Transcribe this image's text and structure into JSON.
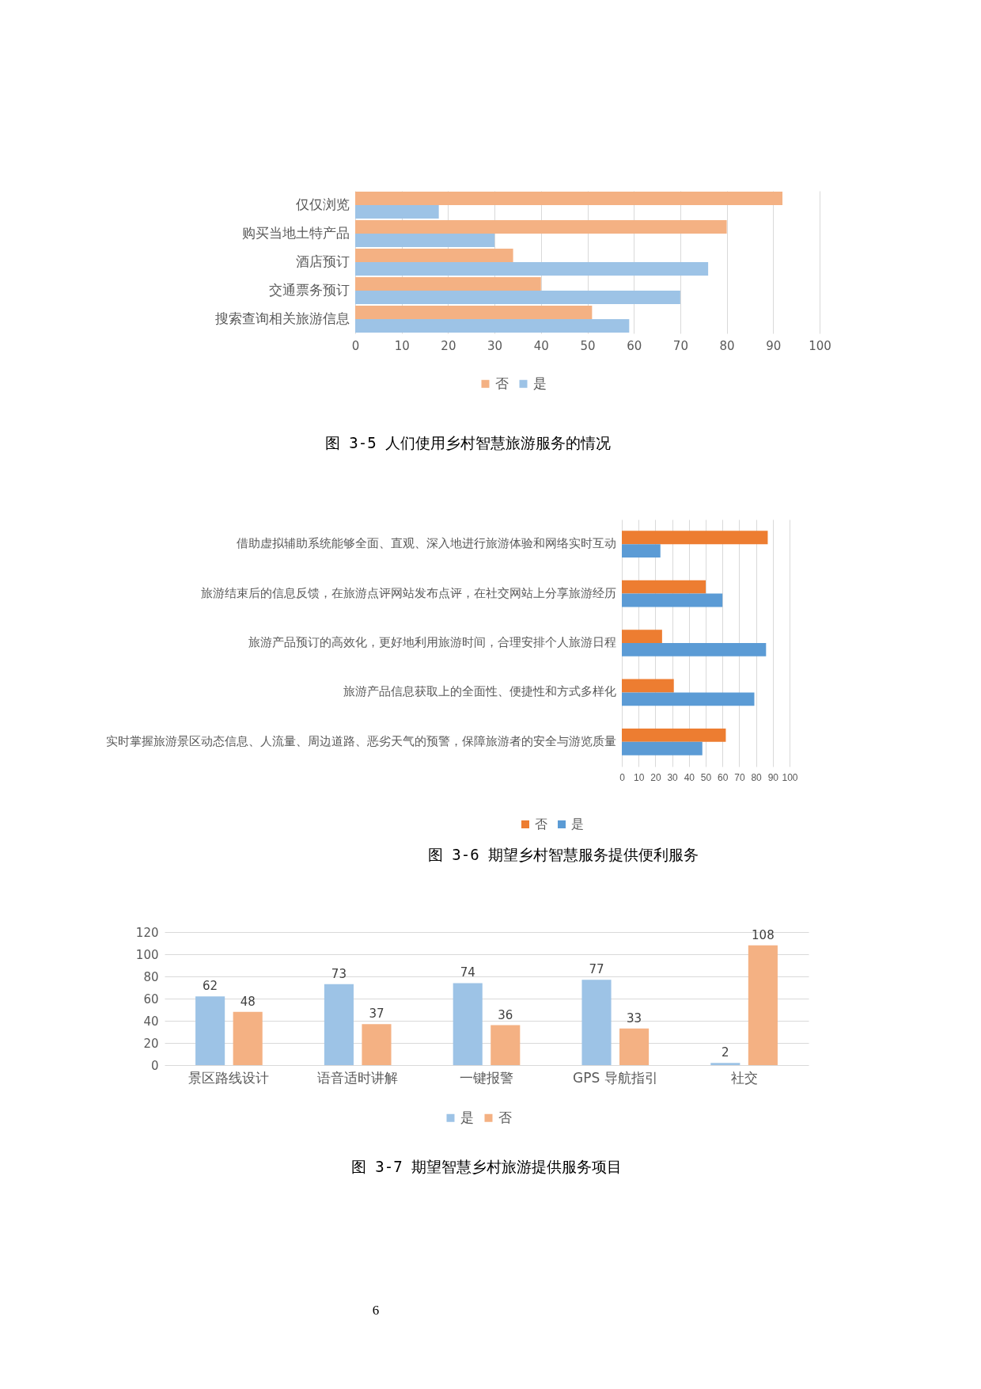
{
  "chart_data": [
    {
      "type": "bar",
      "orientation": "horizontal",
      "title": "图 3-5 人们使用乡村智慧旅游服务的情况",
      "categories": [
        "仅仅浏览",
        "购买当地土特产品",
        "酒店预订",
        "交通票务预订",
        "搜索查询相关旅游信息"
      ],
      "series": [
        {
          "name": "否",
          "color": "#f4b183",
          "values": [
            92,
            80,
            34,
            40,
            51
          ]
        },
        {
          "name": "是",
          "color": "#9dc3e6",
          "values": [
            18,
            30,
            76,
            70,
            59
          ]
        }
      ],
      "xlim": [
        0,
        100
      ],
      "xticks": [
        0,
        10,
        20,
        30,
        40,
        50,
        60,
        70,
        80,
        90,
        100
      ],
      "grid": "x",
      "legend": "bottom"
    },
    {
      "type": "bar",
      "orientation": "horizontal",
      "title": "图 3-6 期望乡村智慧服务提供便利服务",
      "categories": [
        "借助虚拟辅助系统能够全面、直观、深入地进行旅游体验和网络实时互动",
        "旅游结束后的信息反馈，在旅游点评网站发布点评，在社交网站上分享旅游经历",
        "旅游产品预订的高效化，更好地利用旅游时间，合理安排个人旅游日程",
        "旅游产品信息获取上的全面性、便捷性和方式多样化",
        "实时掌握旅游景区动态信息、人流量、周边道路、恶劣天气的预警，保障旅游者的安全与游览质量"
      ],
      "series": [
        {
          "name": "否",
          "color": "#ed7d31",
          "values": [
            87,
            50,
            24,
            31,
            62
          ]
        },
        {
          "name": "是",
          "color": "#5b9bd5",
          "values": [
            23,
            60,
            86,
            79,
            48
          ]
        }
      ],
      "xlim": [
        0,
        100
      ],
      "xticks": [
        0,
        10,
        20,
        30,
        40,
        50,
        60,
        70,
        80,
        90,
        100
      ],
      "grid": "x",
      "legend": "bottom"
    },
    {
      "type": "bar",
      "title": "图 3-7 期望智慧乡村旅游提供服务项目",
      "categories": [
        "景区路线设计",
        "语音适时讲解",
        "一键报警",
        "GPS 导航指引",
        "社交"
      ],
      "series": [
        {
          "name": "是",
          "color": "#9dc3e6",
          "values": [
            62,
            73,
            74,
            77,
            2
          ]
        },
        {
          "name": "否",
          "color": "#f4b183",
          "values": [
            48,
            37,
            36,
            33,
            108
          ]
        }
      ],
      "ylim": [
        0,
        120
      ],
      "yticks": [
        0,
        20,
        40,
        60,
        80,
        100,
        120
      ],
      "grid": "y",
      "legend": "bottom",
      "data_labels": true,
      "annotations": [
        "6"
      ]
    }
  ]
}
